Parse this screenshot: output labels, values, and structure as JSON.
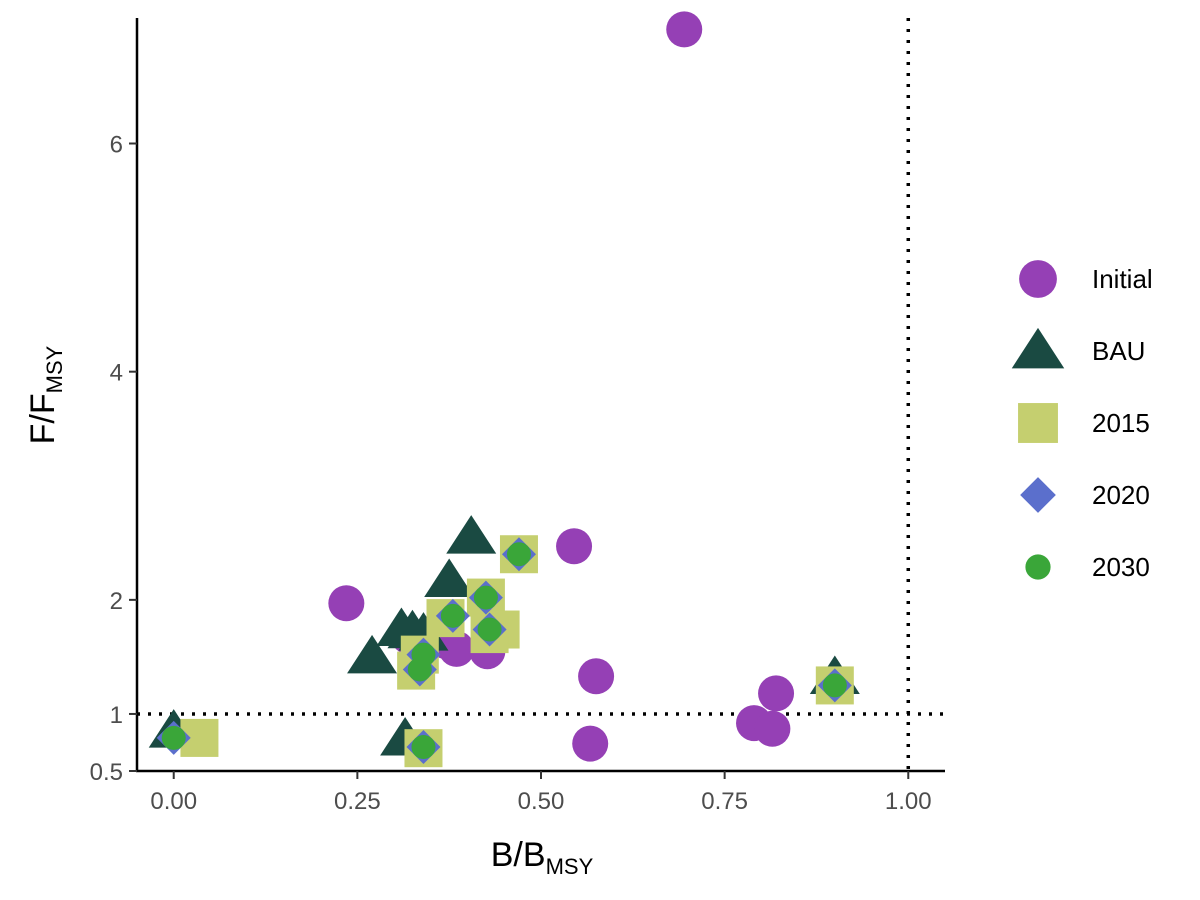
{
  "chart_data": {
    "type": "scatter",
    "title": "",
    "xlabel": {
      "main": "B",
      "slash": "/",
      "base": "B",
      "sub": "MSY"
    },
    "ylabel": {
      "main": "F",
      "slash": "/",
      "base": "F",
      "sub": "MSY"
    },
    "xlim": [
      -0.05,
      1.05
    ],
    "ylim": [
      0.5,
      7.1
    ],
    "x_ticks": [
      0.0,
      0.25,
      0.5,
      0.75,
      1.0
    ],
    "x_tick_labels": [
      "0.00",
      "0.25",
      "0.50",
      "0.75",
      "1.00"
    ],
    "y_ticks": [
      0.5,
      1,
      2,
      4,
      6
    ],
    "y_tick_labels": [
      "0.5",
      "1",
      "2",
      "4",
      "6"
    ],
    "reference_lines": [
      {
        "axis": "x",
        "value": 1.0,
        "style": "dotted"
      },
      {
        "axis": "y",
        "value": 1.0,
        "style": "dotted"
      }
    ],
    "grid": false,
    "legend_position": "right",
    "series": [
      {
        "name": "Initial",
        "shape": "circle",
        "color": "#9540B5",
        "points": [
          [
            0.695,
            7.0
          ],
          [
            0.235,
            1.97
          ],
          [
            0.545,
            2.47
          ],
          [
            0.32,
            1.68
          ],
          [
            0.37,
            1.64
          ],
          [
            0.385,
            1.57
          ],
          [
            0.427,
            1.55
          ],
          [
            0.575,
            1.33
          ],
          [
            0.82,
            1.18
          ],
          [
            0.79,
            0.92
          ],
          [
            0.815,
            0.87
          ],
          [
            0.567,
            0.74
          ]
        ]
      },
      {
        "name": "BAU",
        "shape": "triangle",
        "color": "#1A4A42",
        "points": [
          [
            0.405,
            2.55
          ],
          [
            0.375,
            2.17
          ],
          [
            0.31,
            1.74
          ],
          [
            0.325,
            1.72
          ],
          [
            0.34,
            1.7
          ],
          [
            0.27,
            1.5
          ],
          [
            0.9,
            1.32
          ],
          [
            0.0,
            0.85
          ],
          [
            0.315,
            0.78
          ]
        ]
      },
      {
        "name": "2015",
        "shape": "square",
        "color": "#C5CF6F",
        "points": [
          [
            0.47,
            2.4
          ],
          [
            0.425,
            2.02
          ],
          [
            0.37,
            1.84
          ],
          [
            0.445,
            1.74
          ],
          [
            0.43,
            1.7
          ],
          [
            0.335,
            1.52
          ],
          [
            0.33,
            1.38
          ],
          [
            0.9,
            1.25
          ],
          [
            0.035,
            0.79
          ],
          [
            0.34,
            0.7
          ]
        ]
      },
      {
        "name": "2020",
        "shape": "diamond",
        "color": "#5B6FCC",
        "points": [
          [
            0.47,
            2.4
          ],
          [
            0.425,
            2.02
          ],
          [
            0.38,
            1.86
          ],
          [
            0.43,
            1.74
          ],
          [
            0.34,
            1.52
          ],
          [
            0.335,
            1.39
          ],
          [
            0.9,
            1.25
          ],
          [
            0.0,
            0.79
          ],
          [
            0.34,
            0.71
          ]
        ]
      },
      {
        "name": "2030",
        "shape": "circle-small",
        "color": "#3AA639",
        "points": [
          [
            0.47,
            2.4
          ],
          [
            0.425,
            2.02
          ],
          [
            0.38,
            1.86
          ],
          [
            0.43,
            1.74
          ],
          [
            0.34,
            1.52
          ],
          [
            0.335,
            1.39
          ],
          [
            0.9,
            1.25
          ],
          [
            0.0,
            0.79
          ],
          [
            0.34,
            0.71
          ]
        ]
      }
    ]
  }
}
